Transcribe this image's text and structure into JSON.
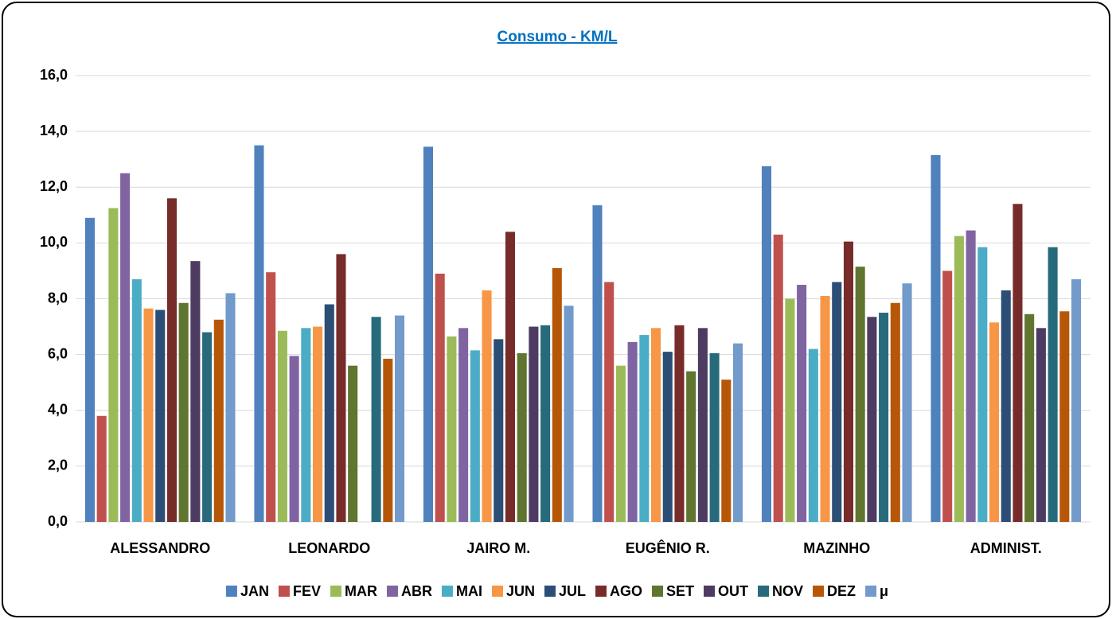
{
  "chart_data": {
    "type": "bar",
    "title": "Consumo - KM/L",
    "categories": [
      "ALESSANDRO",
      "LEONARDO",
      "JAIRO M.",
      "EUGÊNIO R.",
      "MAZINHO",
      "ADMINIST."
    ],
    "series": [
      {
        "name": "JAN",
        "color": "#4f81bd",
        "values": [
          10.9,
          13.5,
          13.45,
          11.35,
          12.75,
          13.15
        ]
      },
      {
        "name": "FEV",
        "color": "#c0504d",
        "values": [
          3.8,
          8.95,
          8.9,
          8.6,
          10.3,
          9.0
        ]
      },
      {
        "name": "MAR",
        "color": "#9bbb59",
        "values": [
          11.25,
          6.85,
          6.65,
          5.6,
          8.0,
          10.25
        ]
      },
      {
        "name": "ABR",
        "color": "#8064a2",
        "values": [
          12.5,
          5.95,
          6.95,
          6.45,
          8.5,
          10.45
        ]
      },
      {
        "name": "MAI",
        "color": "#4bacc6",
        "values": [
          8.7,
          6.95,
          6.15,
          6.7,
          6.2,
          9.85
        ]
      },
      {
        "name": "JUN",
        "color": "#f79646",
        "values": [
          7.65,
          7.0,
          8.3,
          6.95,
          8.1,
          7.15
        ]
      },
      {
        "name": "JUL",
        "color": "#2c4d75",
        "values": [
          7.6,
          7.8,
          6.55,
          6.1,
          8.6,
          8.3
        ]
      },
      {
        "name": "AGO",
        "color": "#772c2a",
        "values": [
          11.6,
          9.6,
          10.4,
          7.05,
          10.05,
          11.4
        ]
      },
      {
        "name": "SET",
        "color": "#5f7530",
        "values": [
          7.85,
          5.6,
          6.05,
          5.4,
          9.15,
          7.45
        ]
      },
      {
        "name": "OUT",
        "color": "#4d3b62",
        "values": [
          9.35,
          null,
          7.0,
          6.95,
          7.35,
          6.95
        ]
      },
      {
        "name": "NOV",
        "color": "#276a7c",
        "values": [
          6.8,
          7.35,
          7.05,
          6.05,
          7.5,
          9.85
        ]
      },
      {
        "name": "DEZ",
        "color": "#b65708",
        "values": [
          7.25,
          5.85,
          9.1,
          5.1,
          7.85,
          7.55
        ]
      },
      {
        "name": "μ",
        "color": "#729aca",
        "values": [
          8.2,
          7.4,
          7.75,
          6.4,
          8.55,
          8.7
        ]
      }
    ],
    "ylim": [
      0,
      16
    ],
    "yticks": [
      {
        "value": 0,
        "label": "0,0"
      },
      {
        "value": 2,
        "label": "2,0"
      },
      {
        "value": 4,
        "label": "4,0"
      },
      {
        "value": 6,
        "label": "6,0"
      },
      {
        "value": 8,
        "label": "8,0"
      },
      {
        "value": 10,
        "label": "10,0"
      },
      {
        "value": 12,
        "label": "12,0"
      },
      {
        "value": 14,
        "label": "14,0"
      },
      {
        "value": 16,
        "label": "16,0"
      }
    ],
    "grid": true,
    "legend": "bottom"
  }
}
